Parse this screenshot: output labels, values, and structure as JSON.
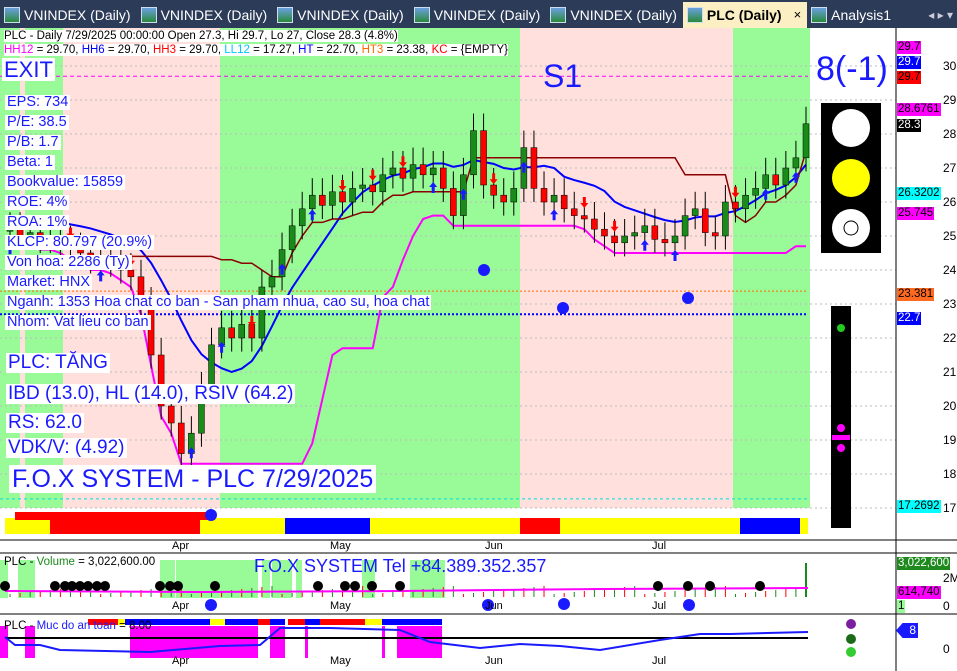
{
  "tabs": [
    {
      "label": "VNINDEX (Daily)"
    },
    {
      "label": "VNINDEX (Daily)"
    },
    {
      "label": "VNINDEX (Daily)"
    },
    {
      "label": "VNINDEX (Daily)"
    },
    {
      "label": "VNINDEX (Daily)"
    },
    {
      "label": "PLC (Daily)",
      "active": true
    },
    {
      "label": "Analysis1"
    }
  ],
  "tab_close": "×",
  "tab_nav": "◂ ▸ ▾",
  "header": {
    "line1": "PLC - Daily 7/29/2025 00:00:00 Open 27.3, Hi 29.7, Lo 27, Close 28.3 (4.8%)",
    "levels": [
      {
        "name": "HH12",
        "value": " = 29.70, ",
        "color": "#ff00ff"
      },
      {
        "name": "HH6",
        "value": " = 29.70, ",
        "color": "#0000ff"
      },
      {
        "name": "HH3",
        "value": " = 29.70, ",
        "color": "#ff0000"
      },
      {
        "name": "LL12",
        "value": " = 17.27, ",
        "color": "#00c8ff"
      },
      {
        "name": "HT",
        "value": "  = 22.70, ",
        "color": "#0000ff"
      },
      {
        "name": "HT3",
        "value": "  = 23.38, ",
        "color": "#ff6a00"
      },
      {
        "name": "KC",
        "value": " = {EMPTY}",
        "color": "#ff0000"
      }
    ]
  },
  "signal": "EXIT",
  "stage": "S1",
  "score": "8(-1)",
  "fundamentals": [
    "EPS: 734",
    "P/E: 38.5",
    "P/B: 1.7",
    "Beta: 1",
    "Bookvalue: 15859",
    "ROE: 4%",
    "ROA: 1%",
    "KLCP: 80.797 (20.9%)",
    "Von hoa: 2286 (Ty)",
    "Market: HNX",
    "Nganh: 1353 Hoa chat co ban - San pham nhua, cao su, hoa chat",
    "Nhom: Vat lieu co ban"
  ],
  "trend": "PLC: TĂNG",
  "ratings": "IBD (13.0), HL (14.0), RSIV (64.2)",
  "rs": "RS: 62.0",
  "vdk": "VDK/V:  (4.92)",
  "watermark": "F.O.X SYSTEM - PLC 7/29/2025",
  "price_axis": {
    "ticks": [
      30,
      29,
      28,
      27,
      26,
      25,
      24,
      23,
      22,
      21,
      20,
      19,
      18,
      17
    ],
    "range": [
      17,
      30
    ]
  },
  "price_tags": [
    {
      "text": "29.7",
      "bg": "#ff00ff",
      "fg": "#000"
    },
    {
      "text": "29.7",
      "bg": "#0000ff",
      "fg": "#fff"
    },
    {
      "text": "29.7",
      "bg": "#ff0000",
      "fg": "#000"
    },
    {
      "text": "28.6761",
      "bg": "#ff00ff",
      "fg": "#000"
    },
    {
      "text": "28.3",
      "bg": "#000",
      "fg": "#fff"
    },
    {
      "text": "26.3202",
      "bg": "#00ffff",
      "fg": "#000"
    },
    {
      "text": "25.745",
      "bg": "#ff00ff",
      "fg": "#000"
    },
    {
      "text": "23.381",
      "bg": "#ff6a20",
      "fg": "#000"
    },
    {
      "text": "22.7",
      "bg": "#0000ff",
      "fg": "#fff"
    },
    {
      "text": "17.2692",
      "bg": "#00ffff",
      "fg": "#000"
    }
  ],
  "months": [
    "Apr",
    "May",
    "Jun",
    "Jul"
  ],
  "traffic_light": [
    "white",
    "yellow",
    "white"
  ],
  "volume": {
    "title_prefix": "PLC - ",
    "title_name": "Volume",
    "title_value": " = 3,022,600.00",
    "phone": "F.O.X SYSTEM Tel +84.389.352.357",
    "tags": [
      {
        "text": "3,022,600",
        "bg": "#1e8a1e",
        "fg": "#fff"
      },
      {
        "text": "614,740",
        "bg": "#ff00ff",
        "fg": "#000"
      },
      {
        "text": "1",
        "bg": "#98fb98",
        "fg": "#000"
      }
    ],
    "axis": [
      "2M",
      "0"
    ]
  },
  "safety": {
    "title_prefix": "PLC - ",
    "title_name": "Muc do an toan",
    "title_value": " = 8.00",
    "tag": "8",
    "axis": "0"
  },
  "chart_data": {
    "type": "candlestick",
    "closes": [
      25.2,
      25.0,
      25.1,
      24.9,
      25.0,
      24.8,
      24.6,
      24.5,
      24.3,
      24.4,
      24.2,
      24.0,
      23.8,
      23.0,
      21.5,
      20.0,
      19.5,
      18.6,
      19.2,
      20.5,
      21.8,
      22.3,
      22.0,
      22.4,
      22.0,
      23.5,
      23.8,
      24.6,
      25.3,
      25.8,
      26.2,
      25.9,
      26.3,
      26.0,
      26.4,
      26.5,
      26.3,
      26.8,
      27.0,
      26.7,
      27.1,
      26.8,
      27.0,
      26.4,
      25.6,
      26.8,
      28.1,
      26.5,
      26.2,
      26.0,
      26.4,
      27.6,
      26.4,
      26.0,
      26.2,
      25.8,
      25.6,
      25.5,
      25.2,
      25.0,
      24.8,
      25.0,
      25.1,
      25.3,
      24.9,
      24.8,
      25.0,
      25.6,
      25.8,
      25.1,
      25.0,
      26.0,
      25.8,
      26.2,
      26.4,
      26.8,
      26.5,
      27.0,
      27.3,
      28.3
    ]
  }
}
